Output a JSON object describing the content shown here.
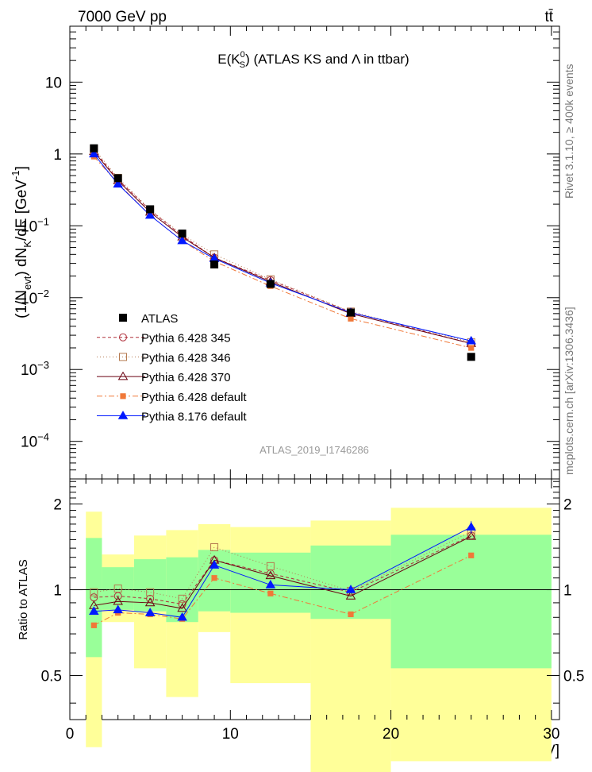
{
  "header": {
    "left": "7000 GeV pp",
    "right": "tt̄"
  },
  "side_text": {
    "rivet": "Rivet 3.1.10, ≥ 400k events",
    "mcplots": "mcplots.cern.ch [arXiv:1306.3436]"
  },
  "chart_data": [
    {
      "type": "line",
      "panel": "main",
      "title": "E(K⁰_S) (ATLAS KS and Λ in ttbar)",
      "title_parts": {
        "pre": "E(K",
        "sup": "0",
        "sub": "S",
        "post": ") (ATLAS KS and Λ in ttbar)"
      },
      "ylabel": "(1/N_evt) dN_K/dE [GeV^-1]",
      "ylabel_parts": {
        "a": "(1/N",
        "a_sub": "evt",
        "b": ") dN",
        "b_sub": "K",
        "c": "/dE [GeV",
        "c_sup": "-1",
        "d": "]"
      },
      "yscale": "log",
      "ylim": [
        3e-05,
        60
      ],
      "xlim": [
        0,
        30.5
      ],
      "yticks": [
        {
          "value": 10,
          "label": "10",
          "sup": ""
        },
        {
          "value": 1,
          "label": "1",
          "sup": ""
        },
        {
          "value": 0.1,
          "label": "10",
          "sup": "−1"
        },
        {
          "value": 0.01,
          "label": "10",
          "sup": "−2"
        },
        {
          "value": 0.001,
          "label": "10",
          "sup": "−3"
        },
        {
          "value": 0.0001,
          "label": "10",
          "sup": "−4"
        }
      ],
      "analysis_label": "ATLAS_2019_I1746286",
      "legend_position": "bottom-left",
      "x": [
        1.5,
        3,
        5,
        7,
        9,
        12.5,
        17.5,
        25
      ],
      "data": {
        "name": "ATLAS",
        "values": [
          1.2,
          0.46,
          0.17,
          0.078,
          0.029,
          0.0155,
          0.0062,
          0.0015
        ]
      },
      "series": [
        {
          "name": "Pythia 6.428 345",
          "color": "#b0303c",
          "marker": "circle-open",
          "dash": "4,3",
          "values": [
            1.13,
            0.44,
            0.165,
            0.073,
            0.036,
            0.0175,
            0.0063,
            0.0023
          ]
        },
        {
          "name": "Pythia 6.428 346",
          "color": "#b57a50",
          "marker": "square-open",
          "dash": "1,3",
          "values": [
            1.18,
            0.465,
            0.168,
            0.076,
            0.04,
            0.018,
            0.0064,
            0.0024
          ]
        },
        {
          "name": "Pythia 6.428 370",
          "color": "#6a0010",
          "marker": "triangle-open",
          "dash": "",
          "values": [
            1.08,
            0.425,
            0.155,
            0.07,
            0.036,
            0.0167,
            0.006,
            0.0023
          ]
        },
        {
          "name": "Pythia 6.428 default",
          "color": "#f07838",
          "marker": "square-filled",
          "dash": "7,3,2,3",
          "values": [
            0.92,
            0.39,
            0.14,
            0.062,
            0.032,
            0.0145,
            0.0051,
            0.002
          ]
        },
        {
          "name": "Pythia 8.176 default",
          "color": "#0018ff",
          "marker": "triangle-filled",
          "dash": "",
          "values": [
            1.0,
            0.38,
            0.14,
            0.062,
            0.035,
            0.016,
            0.0062,
            0.0025
          ]
        }
      ]
    },
    {
      "type": "line",
      "panel": "ratio",
      "ylabel": "Ratio to ATLAS",
      "xlabel": "E [GeV]",
      "yscale": "log",
      "ylim": [
        0.35,
        2.45
      ],
      "xlim": [
        0,
        30.5
      ],
      "xticks": [
        0,
        10,
        20,
        30
      ],
      "yticks": [
        0.5,
        1,
        2
      ],
      "reference_line": 1,
      "bins": [
        [
          1,
          2
        ],
        [
          2,
          4
        ],
        [
          4,
          6
        ],
        [
          6,
          8
        ],
        [
          8,
          10
        ],
        [
          10,
          15
        ],
        [
          15,
          20
        ],
        [
          20,
          30
        ]
      ],
      "band_green": [
        [
          0.58,
          1.52
        ],
        [
          0.85,
          1.2
        ],
        [
          0.84,
          1.28
        ],
        [
          0.77,
          1.3
        ],
        [
          0.84,
          1.38
        ],
        [
          0.83,
          1.35
        ],
        [
          0.79,
          1.43
        ],
        [
          0.53,
          1.56
        ]
      ],
      "band_yellow": [
        [
          0.28,
          1.88
        ],
        [
          0.77,
          1.33
        ],
        [
          0.53,
          1.55
        ],
        [
          0.42,
          1.62
        ],
        [
          0.71,
          1.7
        ],
        [
          0.47,
          1.66
        ],
        [
          0.21,
          1.75
        ],
        [
          0.25,
          1.94
        ]
      ],
      "x": [
        1.5,
        3,
        5,
        7,
        9,
        12.5,
        17.5,
        25
      ],
      "series": [
        {
          "name": "Pythia 6.428 345",
          "color": "#b0303c",
          "marker": "circle-open",
          "dash": "4,3",
          "values": [
            0.94,
            0.95,
            0.93,
            0.89,
            1.27,
            1.14,
            0.98,
            1.55
          ]
        },
        {
          "name": "Pythia 6.428 346",
          "color": "#b57a50",
          "marker": "square-open",
          "dash": "1,3",
          "values": [
            0.98,
            1.01,
            0.98,
            0.93,
            1.41,
            1.21,
            0.99,
            1.6
          ]
        },
        {
          "name": "Pythia 6.428 370",
          "color": "#6a0010",
          "marker": "triangle-open",
          "dash": "",
          "values": [
            0.88,
            0.91,
            0.9,
            0.86,
            1.27,
            1.12,
            0.95,
            1.54
          ]
        },
        {
          "name": "Pythia 6.428 default",
          "color": "#f07838",
          "marker": "square-filled",
          "dash": "7,3,2,3",
          "values": [
            0.75,
            0.83,
            0.82,
            0.79,
            1.1,
            0.97,
            0.82,
            1.32
          ]
        },
        {
          "name": "Pythia 8.176 default",
          "color": "#0018ff",
          "marker": "triangle-filled",
          "dash": "",
          "values": [
            0.84,
            0.85,
            0.83,
            0.8,
            1.22,
            1.04,
            1.0,
            1.66
          ]
        }
      ]
    }
  ]
}
